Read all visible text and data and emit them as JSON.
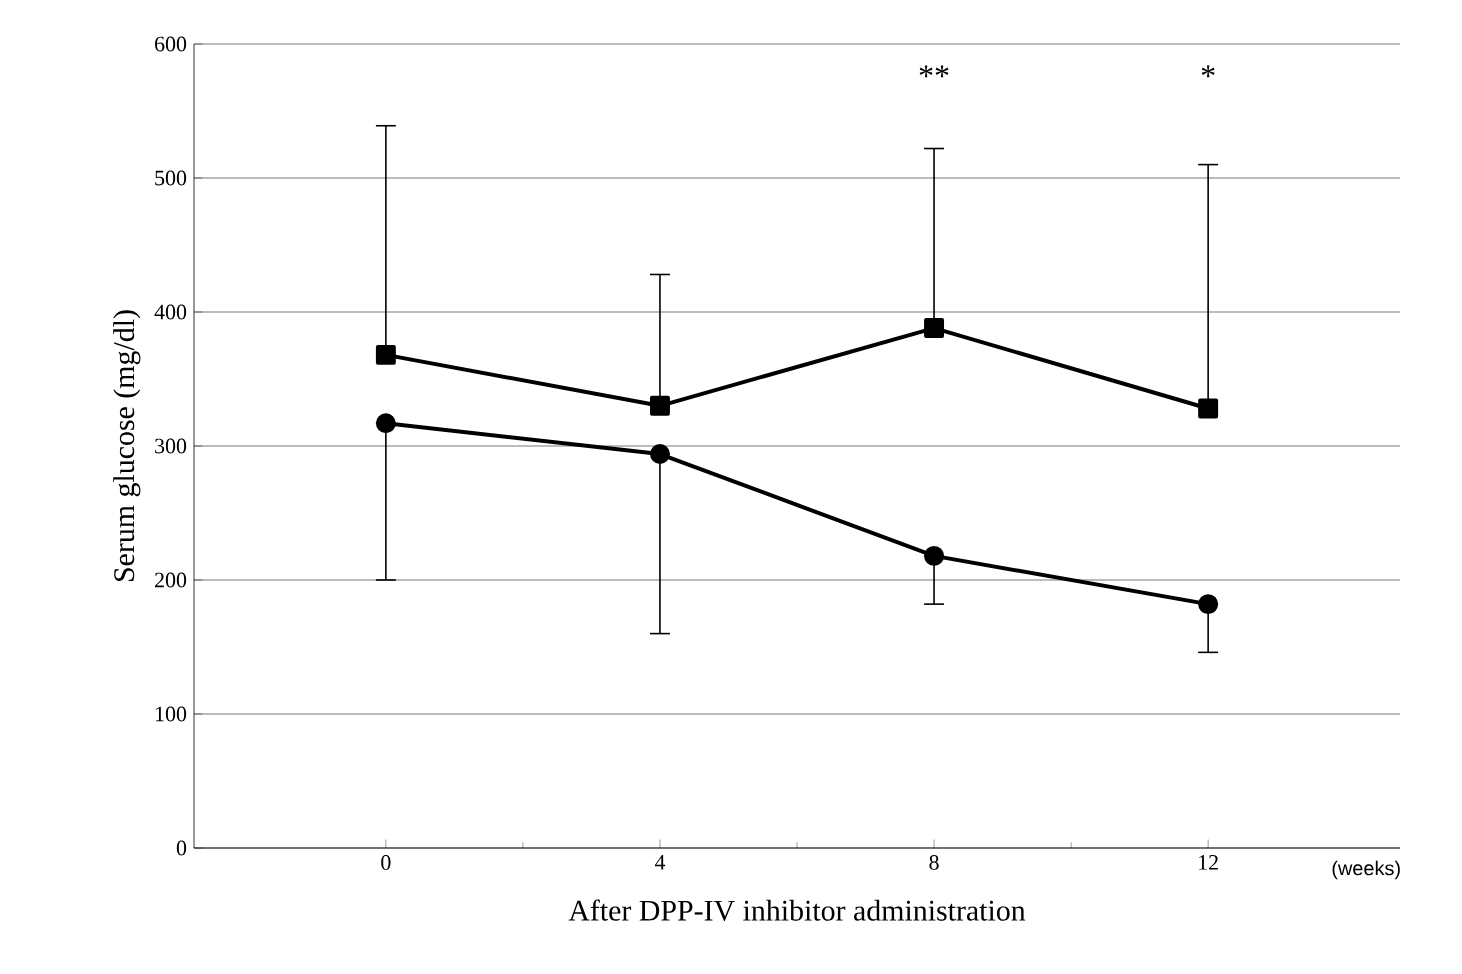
{
  "chart_data": {
    "type": "line",
    "categories": [
      "0",
      "4",
      "8",
      "12"
    ],
    "xlabel": "After DPP-IV inhibitor administration",
    "ylabel": "Serum glucose (mg/dl)",
    "ylim": [
      0,
      600
    ],
    "yticks": [
      0,
      100,
      200,
      300,
      400,
      500,
      600
    ],
    "grid": "y",
    "series": [
      {
        "color": "#000000",
        "marker": "square",
        "values": [
          368,
          330,
          388,
          328
        ],
        "errors": [
          [
            368,
            539
          ],
          [
            330,
            428
          ],
          [
            388,
            522
          ],
          [
            328,
            510
          ]
        ]
      },
      {
        "color": "#000000",
        "marker": "circle",
        "values": [
          317,
          294,
          218,
          182
        ],
        "errors": [
          [
            200,
            317
          ],
          [
            160,
            294
          ],
          [
            182,
            218
          ],
          [
            146,
            182
          ]
        ]
      }
    ],
    "annotations": [
      "(weeks)",
      "**",
      "*"
    ]
  }
}
